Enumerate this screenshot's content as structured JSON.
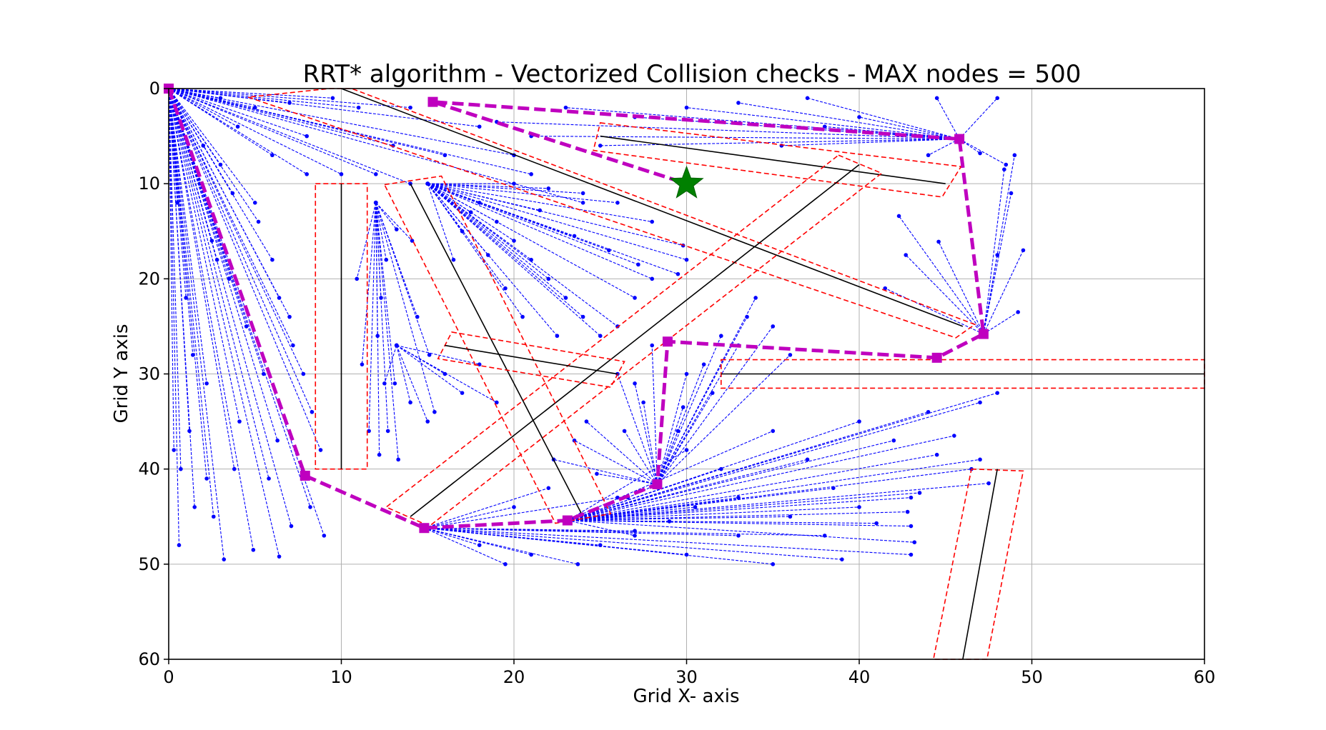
{
  "chart_data": {
    "type": "scatter",
    "title": "RRT* algorithm - Vectorized Collision checks  - MAX nodes = 500",
    "xlabel": "Grid X- axis",
    "ylabel": "Grid Y axis",
    "xlim": [
      0,
      60
    ],
    "ylim": [
      60,
      0
    ],
    "y_inverted": true,
    "grid": true,
    "xticks": [
      "0",
      "10",
      "20",
      "30",
      "40",
      "50",
      "60"
    ],
    "yticks": [
      "0",
      "10",
      "20",
      "30",
      "40",
      "50",
      "60"
    ],
    "colors": {
      "tree": "#0000ff",
      "path": "#bf00bf",
      "obstacle": "#000000",
      "inflated_obstacle": "#ff0000",
      "goal": "#008000",
      "grid": "#b0b0b0"
    },
    "goal": [
      30,
      10
    ],
    "path": [
      [
        0,
        0
      ],
      [
        7.9,
        40.7
      ],
      [
        14.8,
        46.2
      ],
      [
        23.1,
        45.4
      ],
      [
        28.3,
        41.6
      ],
      [
        28.9,
        26.6
      ],
      [
        44.5,
        28.3
      ],
      [
        47.2,
        25.8
      ],
      [
        45.8,
        5.3
      ],
      [
        15.3,
        1.4
      ],
      [
        30,
        10
      ]
    ],
    "obstacles": [
      {
        "segment": [
          [
            10,
            0
          ],
          [
            46,
            25
          ]
        ],
        "inflated": [
          [
            9.3,
            0
          ],
          [
            10.6,
            0
          ],
          [
            46.7,
            24.8
          ],
          [
            45.6,
            26.2
          ],
          [
            4.6,
            0.9
          ]
        ]
      },
      {
        "segment": [
          [
            25,
            5
          ],
          [
            45,
            10
          ]
        ],
        "inflated": [
          [
            25.0,
            3.6
          ],
          [
            45.9,
            8.2
          ],
          [
            44.8,
            11.4
          ],
          [
            24.6,
            6.5
          ]
        ]
      },
      {
        "segment": [
          [
            40,
            8
          ],
          [
            14,
            45
          ]
        ],
        "inflated": [
          [
            38.8,
            7.0
          ],
          [
            41.3,
            8.9
          ],
          [
            15.1,
            46.0
          ],
          [
            12.6,
            44.0
          ]
        ]
      },
      {
        "segment": [
          [
            14,
            10
          ],
          [
            24,
            45
          ]
        ],
        "inflated": [
          [
            12.5,
            10.1
          ],
          [
            15.8,
            9.2
          ],
          [
            25.6,
            44.7
          ],
          [
            22.4,
            45.7
          ]
        ]
      },
      {
        "segment": [
          [
            10,
            10
          ],
          [
            10,
            40
          ]
        ],
        "inflated": [
          [
            8.5,
            10
          ],
          [
            11.5,
            10
          ],
          [
            11.5,
            40
          ],
          [
            8.5,
            40
          ]
        ]
      },
      {
        "segment": [
          [
            16,
            27
          ],
          [
            26,
            30
          ]
        ],
        "inflated": [
          [
            16.4,
            25.6
          ],
          [
            26.4,
            28.7
          ],
          [
            25.6,
            31.4
          ],
          [
            15.6,
            28.4
          ]
        ]
      },
      {
        "segment": [
          [
            32,
            30
          ],
          [
            60,
            30
          ]
        ],
        "inflated": [
          [
            32,
            28.5
          ],
          [
            60,
            28.5
          ],
          [
            60,
            31.5
          ],
          [
            32,
            31.5
          ]
        ]
      },
      {
        "segment": [
          [
            48,
            40
          ],
          [
            46,
            60
          ]
        ],
        "inflated": [
          [
            46.5,
            40
          ],
          [
            49.5,
            40.2
          ],
          [
            47.4,
            60
          ],
          [
            44.3,
            60
          ]
        ]
      }
    ],
    "tree_hubs": [
      [
        0,
        0
      ],
      [
        12,
        12
      ],
      [
        15,
        10
      ],
      [
        28.3,
        41.6
      ],
      [
        14.8,
        46.2
      ],
      [
        23.1,
        45.4
      ],
      [
        45.8,
        5.3
      ],
      [
        47.2,
        25.8
      ],
      [
        7.9,
        40.7
      ],
      [
        13.2,
        27
      ]
    ],
    "tree_edges": [
      [
        0,
        0,
        0.3,
        38
      ],
      [
        0,
        0,
        0.6,
        48
      ],
      [
        0,
        0,
        0.7,
        40
      ],
      [
        0,
        0,
        1.2,
        36
      ],
      [
        0,
        0,
        1.5,
        44
      ],
      [
        0,
        0,
        2.2,
        41
      ],
      [
        0,
        0,
        2.2,
        31
      ],
      [
        0,
        0,
        3.2,
        49.5
      ],
      [
        0,
        0,
        3.8,
        40
      ],
      [
        0,
        0,
        4.9,
        48.5
      ],
      [
        0,
        0,
        6.4,
        49.2
      ],
      [
        0,
        0,
        6.3,
        37
      ],
      [
        0,
        0,
        5.5,
        30
      ],
      [
        0,
        0,
        4.5,
        25
      ],
      [
        0,
        0,
        3.5,
        20
      ],
      [
        0,
        0,
        2.5,
        16
      ],
      [
        0,
        0,
        1.8,
        10
      ],
      [
        0,
        0,
        3,
        8
      ],
      [
        0,
        0,
        5,
        12
      ],
      [
        0,
        0,
        6,
        18
      ],
      [
        0,
        0,
        7,
        24
      ],
      [
        0,
        0,
        7.8,
        30
      ],
      [
        0,
        0,
        8.3,
        34
      ],
      [
        0,
        0,
        8.2,
        44
      ],
      [
        0,
        0,
        9,
        47
      ],
      [
        0,
        0,
        8.8,
        38
      ],
      [
        0,
        0,
        1,
        22
      ],
      [
        0,
        0,
        0.5,
        12
      ],
      [
        0,
        0,
        2,
        6
      ],
      [
        0,
        0,
        4,
        4
      ],
      [
        0,
        0,
        6,
        7
      ],
      [
        0,
        0,
        8,
        9
      ],
      [
        0,
        0,
        10,
        9
      ],
      [
        0,
        0,
        12,
        9
      ],
      [
        0,
        0,
        14,
        10
      ],
      [
        0,
        0,
        9.5,
        1
      ],
      [
        0,
        0,
        14,
        2
      ],
      [
        0,
        0,
        18,
        4
      ],
      [
        0,
        0,
        20,
        7
      ],
      [
        0,
        0,
        13,
        6
      ],
      [
        0,
        0,
        8,
        5
      ],
      [
        0,
        0,
        5,
        2
      ],
      [
        0,
        0,
        11,
        2
      ],
      [
        0,
        0,
        16,
        7
      ],
      [
        0,
        0,
        21,
        9
      ],
      [
        0,
        0,
        24,
        12
      ],
      [
        0,
        0,
        3,
        1
      ],
      [
        0,
        0,
        7,
        1.5
      ],
      [
        0,
        0,
        5.2,
        14
      ],
      [
        0,
        0,
        3.7,
        11
      ],
      [
        0,
        0,
        6.4,
        22
      ],
      [
        0,
        0,
        7.2,
        27
      ],
      [
        0,
        0,
        2.8,
        18
      ],
      [
        0,
        0,
        1.4,
        28
      ],
      [
        0,
        0,
        4.1,
        35
      ],
      [
        0,
        0,
        5.8,
        41
      ],
      [
        0,
        0,
        7.1,
        46
      ],
      [
        0,
        0,
        2.6,
        45
      ],
      [
        12,
        12,
        11.2,
        29
      ],
      [
        12,
        12,
        11.6,
        36
      ],
      [
        12,
        12,
        12.2,
        38.5
      ],
      [
        12,
        12,
        12.7,
        36
      ],
      [
        12,
        12,
        13.1,
        31
      ],
      [
        12,
        12,
        13.3,
        39
      ],
      [
        12,
        12,
        12.3,
        22
      ],
      [
        12,
        12,
        12.6,
        18
      ],
      [
        12,
        12,
        13.2,
        14.8
      ],
      [
        12,
        12,
        14.1,
        16
      ],
      [
        12,
        12,
        14.4,
        24
      ],
      [
        12,
        12,
        15.1,
        28
      ],
      [
        12,
        12,
        15.4,
        34
      ],
      [
        12,
        12,
        10.9,
        20
      ],
      [
        12,
        12,
        12.1,
        26
      ],
      [
        15,
        10,
        19,
        14
      ],
      [
        15,
        10,
        20,
        16
      ],
      [
        15,
        10,
        21,
        18
      ],
      [
        15,
        10,
        22,
        20
      ],
      [
        15,
        10,
        23,
        22
      ],
      [
        15,
        10,
        24,
        24
      ],
      [
        15,
        10,
        25,
        26
      ],
      [
        15,
        10,
        26,
        25
      ],
      [
        15,
        10,
        27,
        22
      ],
      [
        15,
        10,
        28,
        20
      ],
      [
        15,
        10,
        29.5,
        19.5
      ],
      [
        15,
        10,
        30,
        18
      ],
      [
        15,
        10,
        29.8,
        16.5
      ],
      [
        15,
        10,
        28,
        14
      ],
      [
        15,
        10,
        26,
        12
      ],
      [
        15,
        10,
        24,
        11
      ],
      [
        15,
        10,
        22,
        10.5
      ],
      [
        15,
        10,
        20,
        10
      ],
      [
        15,
        10,
        18,
        12
      ],
      [
        15,
        10,
        17,
        15
      ],
      [
        15,
        10,
        16.5,
        18
      ],
      [
        15,
        10,
        19.5,
        21
      ],
      [
        15,
        10,
        20.5,
        24
      ],
      [
        15,
        10,
        22.5,
        26
      ],
      [
        15,
        10,
        17.5,
        13
      ],
      [
        15,
        10,
        21.5,
        12.8
      ],
      [
        15,
        10,
        25.5,
        17
      ],
      [
        15,
        10,
        27.2,
        18.5
      ],
      [
        15,
        10,
        23.5,
        15.5
      ],
      [
        15,
        10,
        18.5,
        17.5
      ],
      [
        13.2,
        27,
        17,
        32
      ],
      [
        13.2,
        27,
        19,
        33
      ],
      [
        13.2,
        27,
        18,
        29
      ],
      [
        13.2,
        27,
        16,
        30
      ],
      [
        13.2,
        27,
        15,
        35
      ],
      [
        13.2,
        27,
        14,
        33
      ],
      [
        13.2,
        27,
        12.5,
        31
      ],
      [
        28.3,
        41.6,
        26,
        30
      ],
      [
        28.3,
        41.6,
        27,
        31
      ],
      [
        28.3,
        41.6,
        28,
        27
      ],
      [
        28.3,
        41.6,
        30,
        30
      ],
      [
        28.3,
        41.6,
        31,
        29
      ],
      [
        28.3,
        41.6,
        32,
        26
      ],
      [
        28.3,
        41.6,
        33,
        27
      ],
      [
        28.3,
        41.6,
        34,
        22
      ],
      [
        28.3,
        41.6,
        35,
        25
      ],
      [
        28.3,
        41.6,
        36,
        28
      ],
      [
        28.3,
        41.6,
        33.5,
        24
      ],
      [
        28.3,
        41.6,
        31.5,
        32
      ],
      [
        28.3,
        41.6,
        29.8,
        33.5
      ],
      [
        28.3,
        41.6,
        26.4,
        36
      ],
      [
        28.3,
        41.6,
        24.2,
        35
      ],
      [
        28.3,
        41.6,
        23.5,
        37
      ],
      [
        28.3,
        41.6,
        22.3,
        39
      ],
      [
        28.3,
        41.6,
        24.8,
        40.5
      ],
      [
        28.3,
        41.6,
        26.6,
        43
      ],
      [
        28.3,
        41.6,
        29.5,
        36
      ],
      [
        28.3,
        41.6,
        27.5,
        33
      ],
      [
        14.8,
        46.2,
        25,
        48
      ],
      [
        14.8,
        46.2,
        30,
        49
      ],
      [
        14.8,
        46.2,
        35,
        50
      ],
      [
        14.8,
        46.2,
        39,
        49.5
      ],
      [
        14.8,
        46.2,
        43,
        49
      ],
      [
        14.8,
        46.2,
        38,
        47
      ],
      [
        14.8,
        46.2,
        33,
        47
      ],
      [
        14.8,
        46.2,
        27,
        46.5
      ],
      [
        14.8,
        46.2,
        21,
        49
      ],
      [
        14.8,
        46.2,
        18,
        48
      ],
      [
        14.8,
        46.2,
        22,
        42
      ],
      [
        14.8,
        46.2,
        20,
        44
      ],
      [
        14.8,
        46.2,
        26,
        43
      ],
      [
        14.8,
        46.2,
        23.7,
        50
      ],
      [
        14.8,
        46.2,
        19.5,
        50
      ],
      [
        23.1,
        45.4,
        30,
        38
      ],
      [
        23.1,
        45.4,
        35,
        36
      ],
      [
        23.1,
        45.4,
        40,
        35
      ],
      [
        23.1,
        45.4,
        44,
        34
      ],
      [
        23.1,
        45.4,
        47,
        33
      ],
      [
        23.1,
        45.4,
        48,
        32
      ],
      [
        23.1,
        45.4,
        42,
        37
      ],
      [
        23.1,
        45.4,
        37,
        39
      ],
      [
        23.1,
        45.4,
        32,
        40
      ],
      [
        23.1,
        45.4,
        44.5,
        38.5
      ],
      [
        23.1,
        45.4,
        46.5,
        40
      ],
      [
        23.1,
        45.4,
        47.5,
        41.5
      ],
      [
        23.1,
        45.4,
        43,
        43
      ],
      [
        23.1,
        45.4,
        40,
        44
      ],
      [
        23.1,
        45.4,
        36,
        45
      ],
      [
        23.1,
        45.4,
        43,
        46
      ],
      [
        23.1,
        45.4,
        47,
        39
      ],
      [
        23.1,
        45.4,
        45.5,
        36.5
      ],
      [
        23.1,
        45.4,
        38.5,
        42
      ],
      [
        23.1,
        45.4,
        33,
        43
      ],
      [
        23.1,
        45.4,
        30.5,
        44
      ],
      [
        23.1,
        45.4,
        29,
        45.5
      ],
      [
        23.1,
        45.4,
        27,
        47
      ],
      [
        23.1,
        45.4,
        43.5,
        42.5
      ],
      [
        23.1,
        45.4,
        42.8,
        44.5
      ],
      [
        23.1,
        45.4,
        41,
        45.7
      ],
      [
        23.1,
        45.4,
        43.2,
        47.7
      ],
      [
        45.8,
        5.3,
        37,
        1
      ],
      [
        45.8,
        5.3,
        33,
        1.5
      ],
      [
        45.8,
        5.3,
        30,
        2
      ],
      [
        45.8,
        5.3,
        27,
        3
      ],
      [
        45.8,
        5.3,
        23,
        2
      ],
      [
        45.8,
        5.3,
        21,
        5
      ],
      [
        45.8,
        5.3,
        19,
        3.5
      ],
      [
        45.8,
        5.3,
        25,
        6
      ],
      [
        45.8,
        5.3,
        35.5,
        6
      ],
      [
        45.8,
        5.3,
        38,
        4
      ],
      [
        45.8,
        5.3,
        40,
        3
      ],
      [
        45.8,
        5.3,
        44,
        7
      ],
      [
        45.8,
        5.3,
        47,
        6.8
      ],
      [
        45.8,
        5.3,
        48.5,
        8
      ],
      [
        45.8,
        5.3,
        44.5,
        1
      ],
      [
        45.8,
        5.3,
        48,
        1
      ],
      [
        47.2,
        25.8,
        48.4,
        8.5
      ],
      [
        47.2,
        25.8,
        49.5,
        17
      ],
      [
        47.2,
        25.8,
        49,
        7
      ],
      [
        47.2,
        25.8,
        44.6,
        16.1
      ],
      [
        47.2,
        25.8,
        42.3,
        13.4
      ],
      [
        47.2,
        25.8,
        48,
        17.5
      ],
      [
        47.2,
        25.8,
        49.2,
        23.5
      ],
      [
        47.2,
        25.8,
        48.8,
        11
      ],
      [
        47.2,
        25.8,
        41.5,
        21
      ],
      [
        47.2,
        25.8,
        42.7,
        17.5
      ]
    ]
  }
}
